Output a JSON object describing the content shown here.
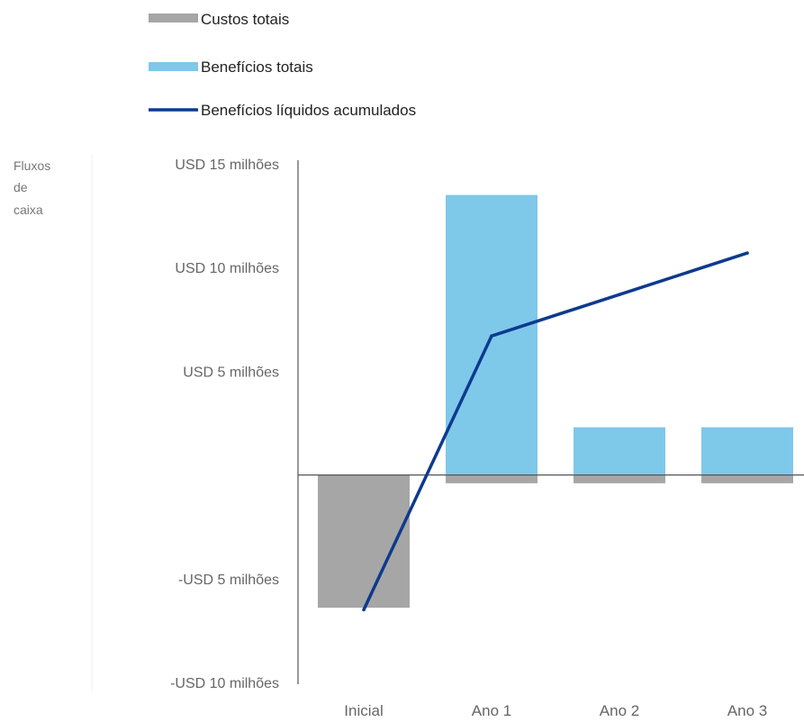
{
  "chart_data": {
    "type": "bar",
    "categories": [
      "Inicial",
      "Ano 1",
      "Ano 2",
      "Ano 3"
    ],
    "series": [
      {
        "name": "Custos totais",
        "kind": "bar",
        "color": "#a6a6a6",
        "values": [
          -6.4,
          -0.4,
          -0.4,
          -0.4
        ]
      },
      {
        "name": "Benefícios totais",
        "kind": "bar",
        "color": "#7ec8ea",
        "values": [
          0,
          13.5,
          2.3,
          2.3
        ]
      },
      {
        "name": "Benefícios líquidos acumulados",
        "kind": "line",
        "color": "#0d3a8e",
        "values": [
          -6.5,
          6.7,
          8.7,
          10.7
        ]
      }
    ],
    "ylabel": [
      "Fluxos",
      "de",
      "caixa"
    ],
    "ylim": [
      -10,
      15
    ],
    "yticks": [
      {
        "value": 15,
        "label": "USD 15 milhões"
      },
      {
        "value": 10,
        "label": "USD 10 milhões"
      },
      {
        "value": 5,
        "label": "USD 5 milhões"
      },
      {
        "value": -5,
        "label": "-USD 5 milhões"
      },
      {
        "value": -10,
        "label": "-USD 10 milhões"
      }
    ],
    "legend": [
      "Custos totais",
      "Benefícios totais",
      "Benefícios líquidos acumulados"
    ],
    "legend_position": "top-left",
    "grid": false
  }
}
